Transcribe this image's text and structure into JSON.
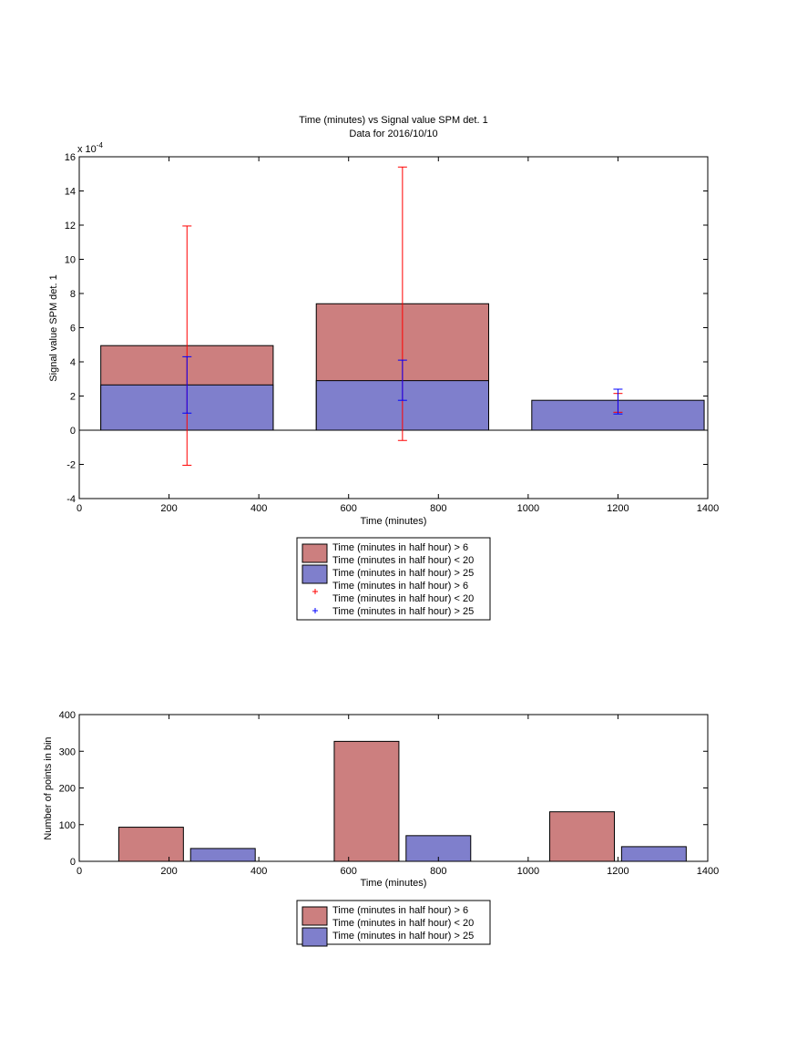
{
  "chart_data": [
    {
      "type": "bar",
      "title": "Time (minutes) vs Signal value SPM det. 1",
      "subtitle": "Data for 2016/10/10",
      "xlabel": "Time (minutes)",
      "ylabel": "Signal value SPM det. 1",
      "y_exponent_label": "x 10",
      "y_exponent_power": "-4",
      "xlim": [
        0,
        1400
      ],
      "ylim": [
        -4,
        16
      ],
      "x_ticks": [
        "0",
        "200",
        "400",
        "600",
        "800",
        "1000",
        "1200",
        "1400"
      ],
      "y_ticks": [
        "-4",
        "-2",
        "0",
        "2",
        "4",
        "6",
        "8",
        "10",
        "12",
        "14",
        "16"
      ],
      "grid": false,
      "legend_position": "below",
      "bar_centers": [
        240,
        720,
        1200
      ],
      "bar_width": 384,
      "series": [
        {
          "name": "Time (minutes in half hour) > 6\nTime (minutes in half hour) < 20",
          "color": "#cc7f7f",
          "values": [
            4.95,
            7.4,
            null
          ],
          "error_low": [
            -2.05,
            -0.6,
            1.05
          ],
          "error_high": [
            11.95,
            15.4,
            2.15
          ],
          "error_color": "#ff0000"
        },
        {
          "name": "Time (minutes in half hour) > 25",
          "color": "#7f7fcc",
          "values": [
            2.65,
            2.9,
            1.75
          ],
          "error_low": [
            1.0,
            1.75,
            0.95
          ],
          "error_high": [
            4.3,
            4.1,
            2.4
          ],
          "error_color": "#0000ff"
        }
      ],
      "legend": [
        {
          "kind": "patch",
          "color": "#cc7f7f",
          "lines": [
            "Time (minutes in half hour) > 6",
            "Time (minutes in half hour) < 20"
          ]
        },
        {
          "kind": "patch",
          "color": "#7f7fcc",
          "lines": [
            "Time (minutes in half hour) > 25"
          ]
        },
        {
          "kind": "marker",
          "color": "#ff0000",
          "lines": [
            "Time (minutes in half hour) > 6",
            "Time (minutes in half hour) < 20"
          ]
        },
        {
          "kind": "marker",
          "color": "#0000ff",
          "lines": [
            "Time (minutes in half hour) > 25"
          ]
        }
      ]
    },
    {
      "type": "bar",
      "xlabel": "Time (minutes)",
      "ylabel": "Number of points in bin",
      "xlim": [
        0,
        1400
      ],
      "ylim": [
        0,
        400
      ],
      "x_ticks": [
        "0",
        "200",
        "400",
        "600",
        "800",
        "1000",
        "1200",
        "1400"
      ],
      "y_ticks": [
        "0",
        "100",
        "200",
        "300",
        "400"
      ],
      "grid": false,
      "legend_position": "below",
      "series": [
        {
          "name": "Time (minutes in half hour) > 6\nTime (minutes in half hour) < 20",
          "color": "#cc7f7f",
          "x": [
            160,
            640,
            1120
          ],
          "values": [
            93,
            327,
            135
          ]
        },
        {
          "name": "Time (minutes in half hour) > 25",
          "color": "#7f7fcc",
          "x": [
            320,
            800,
            1280
          ],
          "values": [
            35,
            70,
            40
          ]
        }
      ],
      "bar_width": 144,
      "legend": [
        {
          "kind": "patch",
          "color": "#cc7f7f",
          "lines": [
            "Time (minutes in half hour) > 6",
            "Time (minutes in half hour) < 20"
          ]
        },
        {
          "kind": "patch",
          "color": "#7f7fcc",
          "lines": [
            "Time (minutes in half hour) > 25"
          ]
        }
      ]
    }
  ]
}
